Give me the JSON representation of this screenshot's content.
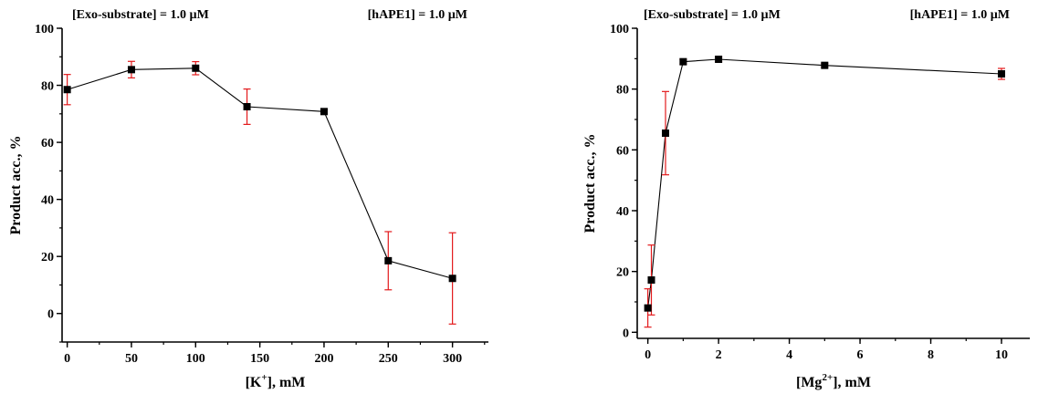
{
  "chart_data": [
    {
      "type": "scatter",
      "xlabel": "[K+], mM",
      "xlabel_main": "[K",
      "xlabel_sup": "+",
      "xlabel_rest": "], mM",
      "ylabel": "Product acc., %",
      "annotation_left": "[Exo-substrate] = 1.0 µM",
      "annotation_right": "[hAPE1] = 1.0 µM",
      "xlim": [
        -4,
        328
      ],
      "ylim": [
        -10,
        100
      ],
      "xticks": [
        0,
        50,
        100,
        150,
        200,
        250,
        300
      ],
      "xtick_labels": [
        "0",
        "50",
        "100",
        "150",
        "200",
        "250",
        "300"
      ],
      "yticks": [
        0,
        20,
        40,
        60,
        80,
        100
      ],
      "ytick_labels": [
        "0",
        "20",
        "40",
        "60",
        "80",
        "100"
      ],
      "x_minor_step": 25,
      "y_minor_step": 10,
      "marker_color": "#000000",
      "line_color": "#000000",
      "errorbar_color": "#e31a1c",
      "points": [
        {
          "x": 0,
          "y": 78.5,
          "err": 5.3
        },
        {
          "x": 50,
          "y": 85.5,
          "err": 2.9
        },
        {
          "x": 100,
          "y": 86.0,
          "err": 2.3
        },
        {
          "x": 140,
          "y": 72.5,
          "err": 6.2
        },
        {
          "x": 200,
          "y": 70.8,
          "err": 0.8
        },
        {
          "x": 250,
          "y": 18.5,
          "err": 10.2
        },
        {
          "x": 300,
          "y": 12.3,
          "err": 16.0
        }
      ]
    },
    {
      "type": "scatter",
      "xlabel": "[Mg2+], mM",
      "xlabel_main": "[Mg",
      "xlabel_sup": "2+",
      "xlabel_rest": "], mM",
      "ylabel": "Product acc., %",
      "annotation_left": "[Exo-substrate] = 1.0 µM",
      "annotation_right": "[hAPE1] = 1.0 µM",
      "xlim": [
        -0.3,
        10.8
      ],
      "ylim": [
        -2,
        100
      ],
      "xticks": [
        0,
        2,
        4,
        6,
        8,
        10
      ],
      "xtick_labels": [
        "0",
        "2",
        "4",
        "6",
        "8",
        "10"
      ],
      "yticks": [
        0,
        20,
        40,
        60,
        80,
        100
      ],
      "ytick_labels": [
        "0",
        "20",
        "40",
        "60",
        "80",
        "100"
      ],
      "x_minor_step": 1,
      "y_minor_step": 10,
      "marker_color": "#000000",
      "line_color": "#000000",
      "errorbar_color": "#e31a1c",
      "points": [
        {
          "x": 0,
          "y": 8.0,
          "err": 6.3
        },
        {
          "x": 0.1,
          "y": 17.2,
          "err": 11.5
        },
        {
          "x": 0.5,
          "y": 65.5,
          "err": 13.7
        },
        {
          "x": 1,
          "y": 89.0,
          "err": 0.8
        },
        {
          "x": 2,
          "y": 89.8,
          "err": 0.8
        },
        {
          "x": 5,
          "y": 87.8,
          "err": 0.6
        },
        {
          "x": 10,
          "y": 85.0,
          "err": 1.8
        }
      ]
    }
  ]
}
